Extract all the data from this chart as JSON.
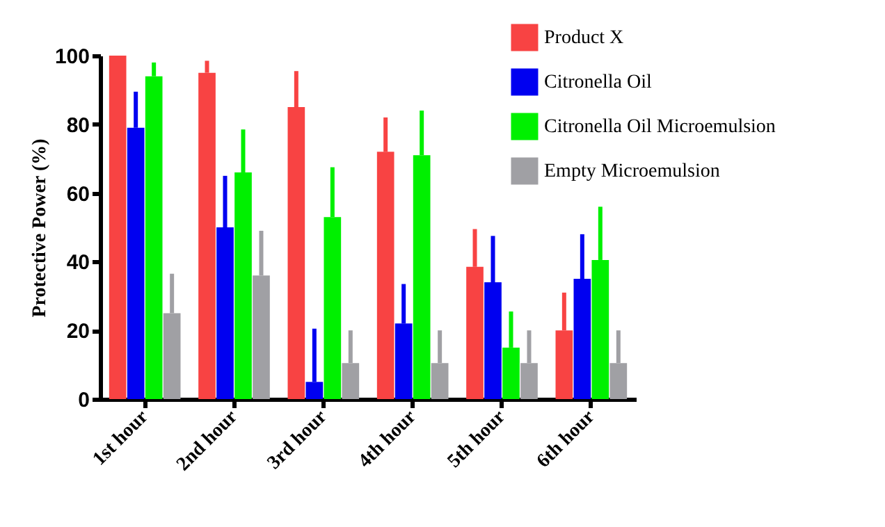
{
  "chart_data": {
    "type": "bar",
    "ylabel": "Protective Power (%)",
    "categories": [
      "1st hour",
      "2nd hour",
      "3rd hour",
      "4th hour",
      "5th hour",
      "6th hour"
    ],
    "series": [
      {
        "name": "Product X",
        "color": "#f84343",
        "values": [
          100,
          95,
          85,
          72,
          38.5,
          20
        ],
        "errors": [
          null,
          [
            95,
            98.5
          ],
          [
            85,
            95.5
          ],
          [
            72,
            82
          ],
          [
            38.5,
            49.5
          ],
          [
            20,
            31
          ]
        ]
      },
      {
        "name": "Citronella Oil",
        "color": "#0000f0",
        "values": [
          79,
          50,
          5,
          22,
          34,
          35
        ],
        "errors": [
          [
            79,
            89.5
          ],
          [
            50,
            65
          ],
          [
            5,
            20.5
          ],
          [
            22,
            33.5
          ],
          [
            34,
            47.5
          ],
          [
            35,
            48
          ]
        ]
      },
      {
        "name": "Citronella Oil Microemulsion",
        "color": "#00f000",
        "values": [
          94,
          66,
          53,
          71,
          15,
          40.5
        ],
        "errors": [
          [
            94,
            98
          ],
          [
            66,
            78.5
          ],
          [
            53,
            67.5
          ],
          [
            71,
            84
          ],
          [
            15,
            25.5
          ],
          [
            40.5,
            56
          ]
        ]
      },
      {
        "name": "Empty Microemulsion",
        "color": "#a0a0a4",
        "values": [
          25,
          36,
          10.5,
          10.5,
          10.5,
          10.5
        ],
        "errors": [
          [
            25,
            36.5
          ],
          [
            36,
            49
          ],
          [
            10.5,
            20
          ],
          [
            10.5,
            20
          ],
          [
            10.5,
            20
          ],
          [
            10.5,
            20
          ]
        ]
      }
    ],
    "ylim": [
      0,
      100
    ],
    "yticks": [
      0,
      20,
      40,
      60,
      80,
      100
    ],
    "grid": false,
    "legend": "top right"
  }
}
